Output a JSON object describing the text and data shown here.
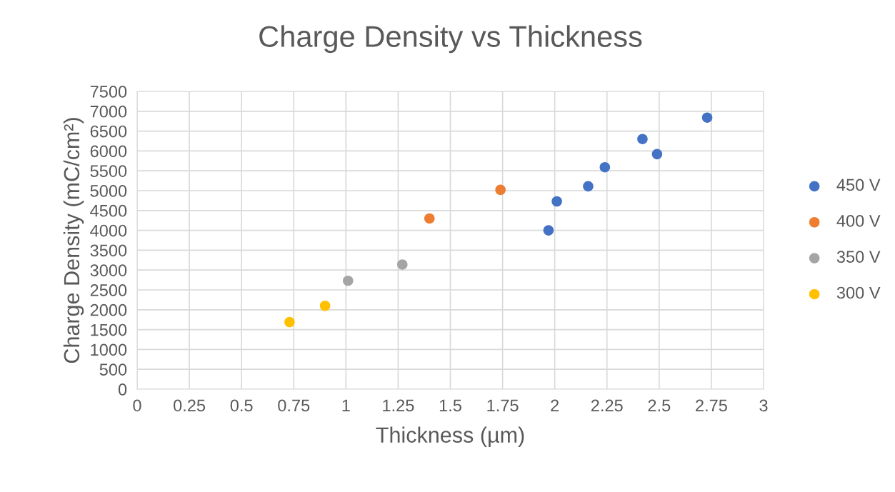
{
  "chart_data": {
    "type": "scatter",
    "title": "Charge Density vs Thickness",
    "xlabel": "Thickness (µm)",
    "ylabel": "Charge Density (mC/cm²)",
    "series": [
      {
        "name": "450 V",
        "color": "#4472c4",
        "x": [
          1.97,
          2.01,
          2.16,
          2.24,
          2.42,
          2.49,
          2.73
        ],
        "values": [
          4000,
          4730,
          5110,
          5590,
          6300,
          5920,
          6840
        ]
      },
      {
        "name": "400 V",
        "color": "#ed7d31",
        "x": [
          1.4,
          1.74
        ],
        "values": [
          4300,
          5020
        ]
      },
      {
        "name": "350 V",
        "color": "#a5a5a5",
        "x": [
          1.01,
          1.27
        ],
        "values": [
          2730,
          3140
        ]
      },
      {
        "name": "300 V",
        "color": "#ffc000",
        "x": [
          0.73,
          0.9
        ],
        "values": [
          1690,
          2100
        ]
      }
    ],
    "xlim": [
      0,
      3
    ],
    "xticks": [
      0,
      0.25,
      0.5,
      0.75,
      1,
      1.25,
      1.5,
      1.75,
      2,
      2.25,
      2.5,
      2.75,
      3
    ],
    "ylim": [
      0,
      7500
    ],
    "yticks": [
      0,
      500,
      1000,
      1500,
      2000,
      2500,
      3000,
      3500,
      4000,
      4500,
      5000,
      5500,
      6000,
      6500,
      7000,
      7500
    ],
    "grid": true,
    "legend": "right",
    "marker": "circle"
  }
}
